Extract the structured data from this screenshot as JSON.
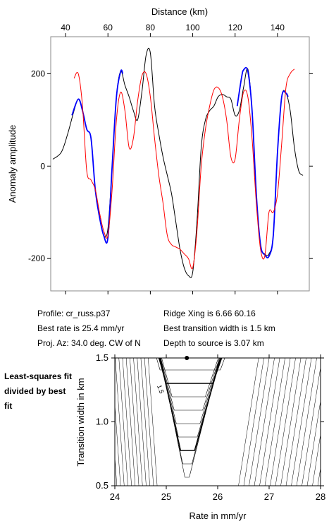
{
  "chart_data": [
    {
      "type": "line",
      "xlabel": "Distance (km)",
      "ylabel": "Anomaly amplitude",
      "xlim": [
        33,
        155
      ],
      "ylim": [
        -270,
        280
      ],
      "x_ticks": [
        "40",
        "60",
        "80",
        "100",
        "120",
        "140"
      ],
      "y_ticks": [
        "200",
        "0",
        "-200"
      ],
      "x_tick_values": [
        40,
        60,
        80,
        100,
        120,
        140
      ],
      "y_tick_values": [
        200,
        0,
        -200
      ],
      "x_axis_position": "top",
      "grid": false,
      "series": [
        {
          "color": "#000000",
          "x": [
            34,
            38,
            41,
            44,
            46,
            48,
            50,
            52,
            54,
            56,
            58,
            60,
            62,
            64,
            66,
            68,
            70,
            72,
            74,
            76,
            78,
            80,
            82,
            84,
            86,
            88,
            90,
            92,
            94,
            96,
            98,
            100,
            102,
            104,
            106,
            108,
            110,
            112,
            114,
            116,
            118,
            120,
            122,
            124,
            126,
            128,
            130,
            132,
            134,
            136,
            138,
            140,
            142,
            144,
            146,
            148,
            150,
            152
          ],
          "y": [
            15,
            30,
            70,
            120,
            145,
            120,
            80,
            60,
            -50,
            -110,
            -150,
            -135,
            0,
            150,
            205,
            175,
            150,
            120,
            100,
            160,
            240,
            245,
            130,
            70,
            20,
            -20,
            -60,
            -120,
            -180,
            -220,
            -237,
            -230,
            -120,
            40,
            100,
            120,
            130,
            150,
            155,
            150,
            145,
            110,
            120,
            170,
            210,
            120,
            -60,
            -170,
            -190,
            -190,
            -150,
            30,
            150,
            158,
            120,
            40,
            -10,
            -20
          ]
        },
        {
          "color": "#0000ff",
          "x": [
            43,
            46,
            48,
            50,
            52,
            54,
            56,
            58,
            60,
            62,
            64,
            66,
            67
          ],
          "y": [
            110,
            145,
            120,
            80,
            60,
            -50,
            -110,
            -150,
            -155,
            0,
            150,
            205,
            200
          ]
        },
        {
          "color": "#0000ff",
          "x": [
            121,
            123,
            124,
            126,
            128,
            130,
            132,
            134,
            136,
            138,
            140,
            142,
            144,
            145
          ],
          "y": [
            130,
            190,
            208,
            205,
            120,
            -60,
            -170,
            -192,
            -195,
            -150,
            30,
            150,
            158,
            150
          ]
        },
        {
          "color": "#ff0000",
          "x": [
            44,
            46,
            48,
            50,
            52,
            54,
            56,
            58,
            60,
            62,
            64,
            66,
            68,
            70,
            72,
            74,
            76,
            78,
            80,
            82,
            84,
            86,
            88,
            90,
            92,
            94,
            96,
            98,
            100,
            102,
            104,
            106,
            108,
            110,
            112,
            114,
            116,
            118,
            120,
            122,
            124,
            126,
            128,
            130,
            132,
            134,
            136,
            138,
            140,
            142,
            144,
            146,
            148
          ],
          "y": [
            190,
            200,
            130,
            -10,
            -30,
            -50,
            -100,
            -140,
            -150,
            -50,
            100,
            160,
            120,
            40,
            60,
            140,
            195,
            200,
            150,
            60,
            -20,
            -80,
            -150,
            -170,
            -175,
            -180,
            -190,
            -200,
            -220,
            -140,
            0,
            80,
            130,
            165,
            170,
            150,
            100,
            20,
            15,
            100,
            160,
            150,
            60,
            -80,
            -180,
            -195,
            -100,
            -100,
            -60,
            50,
            170,
            200,
            210
          ]
        }
      ]
    },
    {
      "type": "contour",
      "xlabel": "Rate in mm/yr",
      "ylabel": "Transition width in km",
      "xlim": [
        24,
        28
      ],
      "ylim": [
        0.5,
        1.5
      ],
      "x_ticks": [
        "24",
        "25",
        "26",
        "27",
        "28"
      ],
      "y_ticks": [
        "1.5",
        "1.0",
        "0.5"
      ],
      "x_tick_values": [
        24,
        25,
        26,
        27,
        28
      ],
      "y_tick_values": [
        1.5,
        1.0,
        0.5
      ],
      "contour_label": "1.5",
      "best_fit": {
        "rate": 25.4,
        "width": 1.5
      }
    }
  ],
  "info": {
    "profile": "Profile: cr_russ.p37",
    "best_rate": "Best rate is 25.4 mm/yr",
    "proj_az": "Proj. Az: 34.0 deg. CW of N",
    "ridge_xing": "Ridge Xing is 6.66 60.16",
    "best_width": "Best transition width is 1.5 km",
    "depth": "Depth to source is   3.07 km"
  },
  "side_note": "Least-squares fit divided by best fit"
}
